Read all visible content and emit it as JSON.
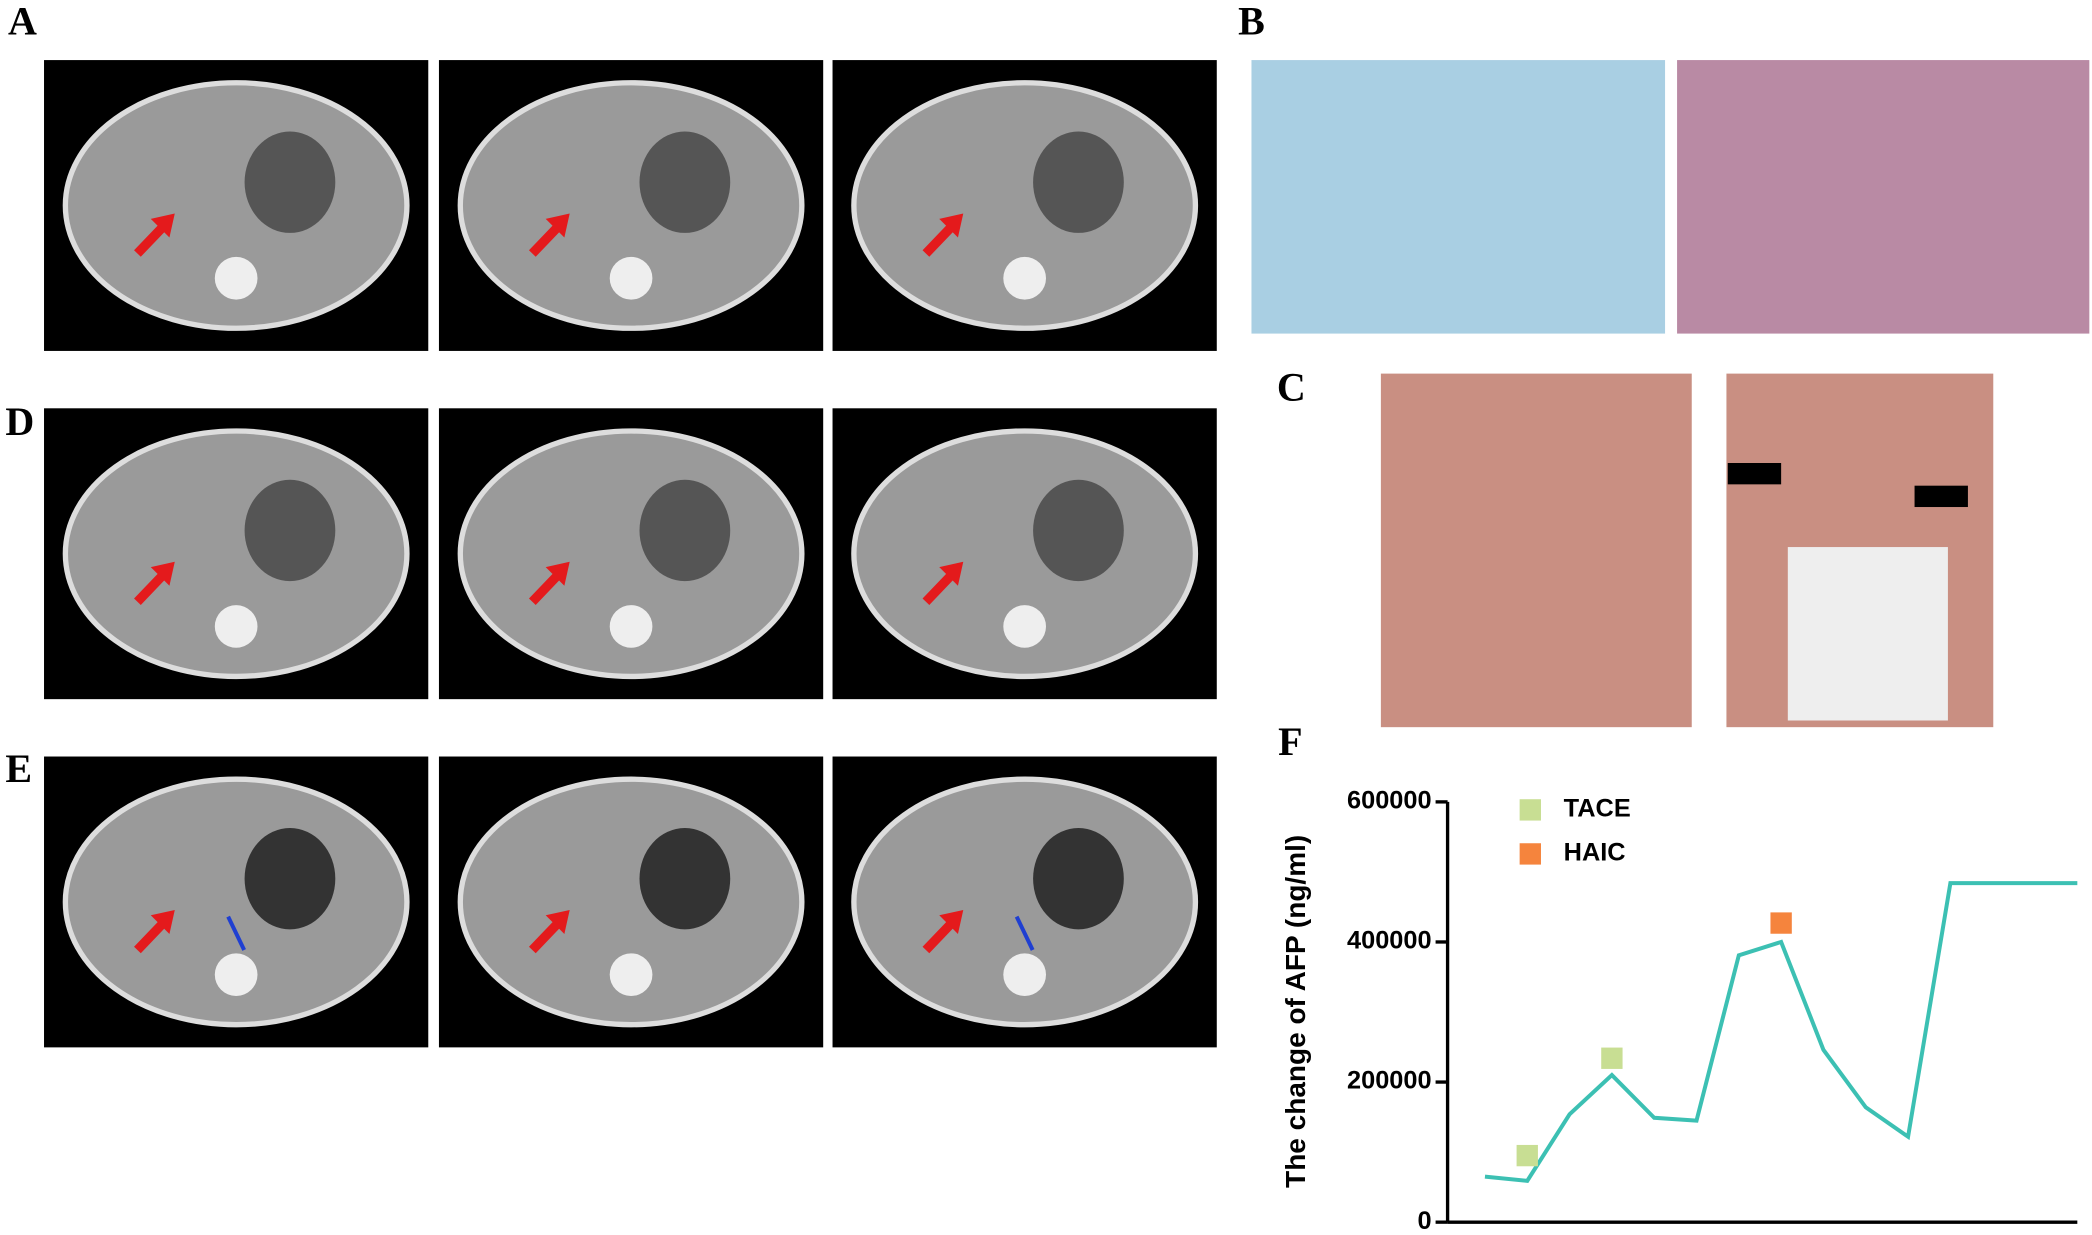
{
  "labels": [
    "A",
    "B",
    "C",
    "D",
    "E",
    "F"
  ],
  "chart_data": {
    "type": "line",
    "ylabel": "The change of AFP (ng/ml)",
    "categories": [
      null,
      null,
      null,
      null,
      null,
      null,
      null,
      null,
      null,
      null,
      null,
      null,
      null,
      null,
      null
    ],
    "ylim": [
      0,
      600000
    ],
    "yticks": [
      0,
      200000,
      400000,
      600000
    ],
    "series": [
      {
        "color": "#3cc0b3",
        "marker": "none",
        "values": [
          65000,
          59000,
          154000,
          210000,
          149000,
          145000,
          381000,
          400000,
          246000,
          164000,
          122000,
          484000,
          484000,
          484000,
          484000
        ]
      },
      {
        "name": "TACE",
        "color": "#c8de93",
        "marker": "square",
        "values": [
          null,
          95000,
          null,
          234000,
          null,
          null,
          null,
          null,
          null,
          null,
          null,
          null,
          null,
          null,
          null
        ]
      },
      {
        "name": "HAIC",
        "color": "#f5843d",
        "marker": "square",
        "values": [
          null,
          null,
          null,
          null,
          null,
          null,
          null,
          427000,
          null,
          null,
          null,
          null,
          null,
          null,
          null
        ]
      }
    ]
  }
}
